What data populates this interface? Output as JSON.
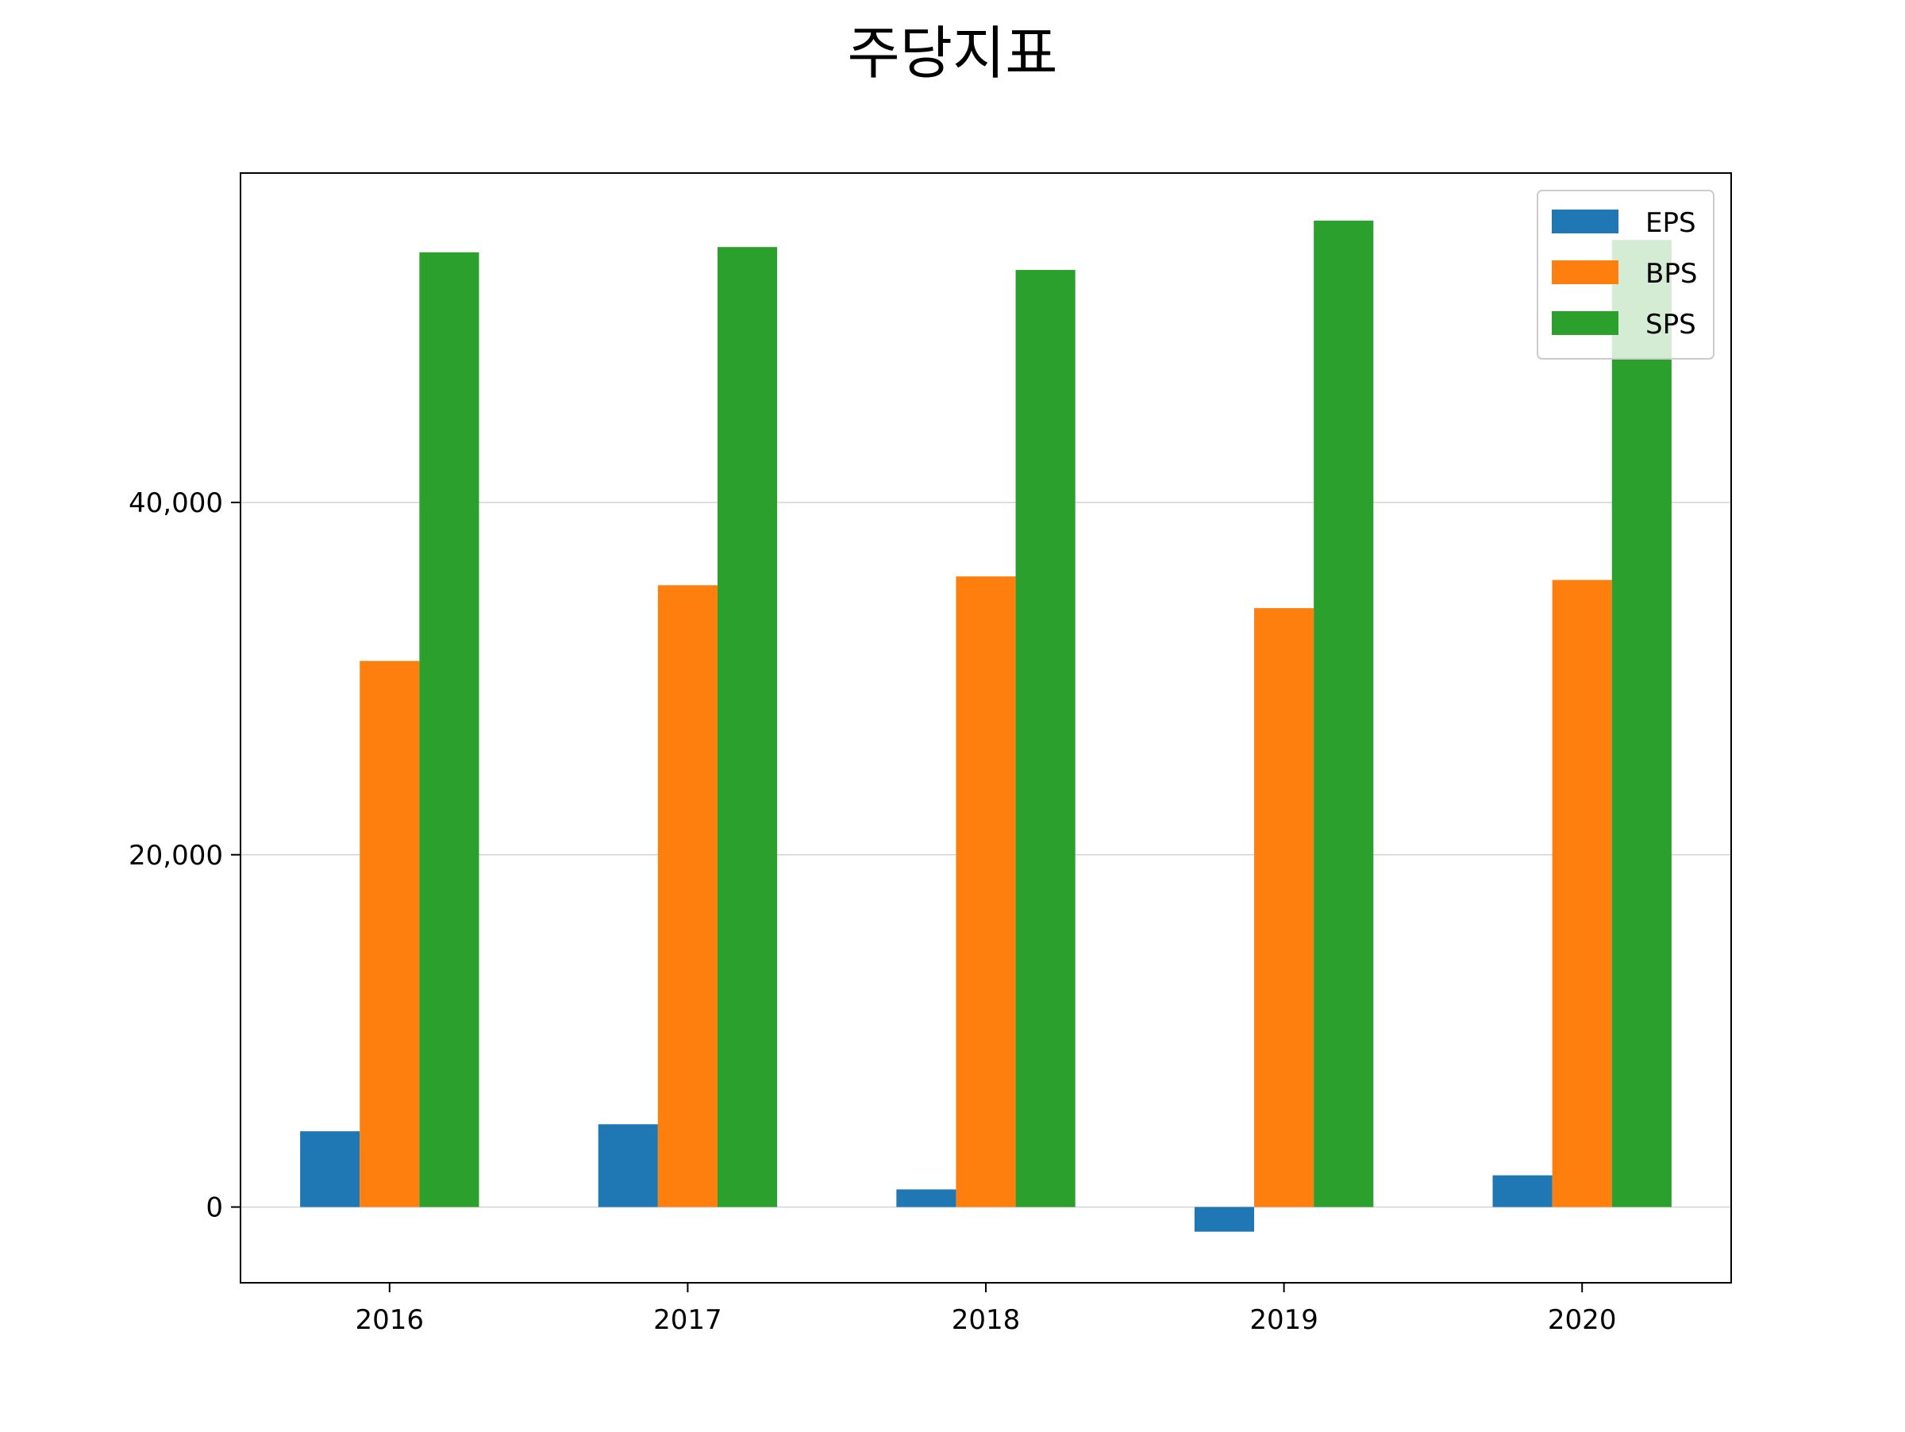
{
  "chart_data": {
    "type": "bar",
    "title": "주당지표",
    "xlabel": "",
    "ylabel": "",
    "categories": [
      "2016",
      "2017",
      "2018",
      "2019",
      "2020"
    ],
    "series": [
      {
        "name": "EPS",
        "color": "#1f77b4",
        "values": [
          4300,
          4700,
          1000,
          -1400,
          1800
        ]
      },
      {
        "name": "BPS",
        "color": "#ff7f0e",
        "values": [
          31000,
          35300,
          35800,
          34000,
          35600
        ]
      },
      {
        "name": "SPS",
        "color": "#2ca02c",
        "values": [
          54200,
          54500,
          53200,
          56000,
          54900
        ]
      }
    ],
    "ylim": [
      -4300,
      58700
    ],
    "yticks": [
      0,
      20000,
      40000
    ],
    "ytick_labels": [
      "0",
      "20,000",
      "40,000"
    ],
    "grid": "horizontal",
    "legend_position": "top-right"
  }
}
